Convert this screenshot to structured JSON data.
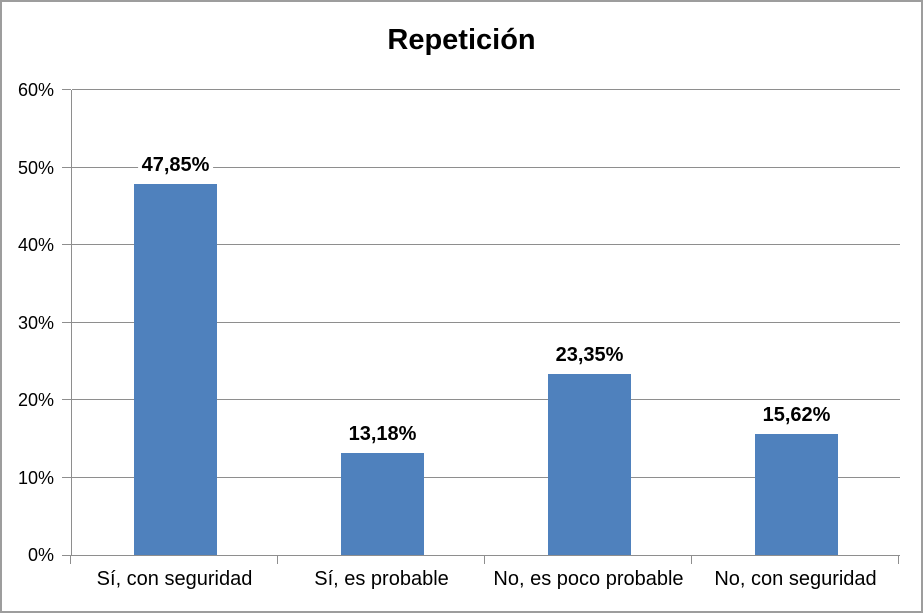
{
  "chart": {
    "title": "Repetición"
  },
  "chart_data": {
    "type": "bar",
    "title": "Repetición",
    "categories": [
      "Sí, con seguridad",
      "Sí, es probable",
      "No, es poco probable",
      "No, con seguridad"
    ],
    "values": [
      47.85,
      13.18,
      23.35,
      15.62
    ],
    "data_labels": [
      "47,85%",
      "13,18%",
      "23,35%",
      "15,62%"
    ],
    "xlabel": "",
    "ylabel": "",
    "ylim": [
      0,
      60
    ],
    "ytick_step": 10,
    "ytick_labels": [
      "0%",
      "10%",
      "20%",
      "30%",
      "40%",
      "50%",
      "60%"
    ],
    "grid": true,
    "legend_position": "none",
    "bar_color": "#4f81bd",
    "gridline_color": "#8e8e8e",
    "axis_color": "#8e8e8e",
    "frame_border_color": "#9d9d9d",
    "text_color": "#000000",
    "background_color": "#ffffff"
  }
}
